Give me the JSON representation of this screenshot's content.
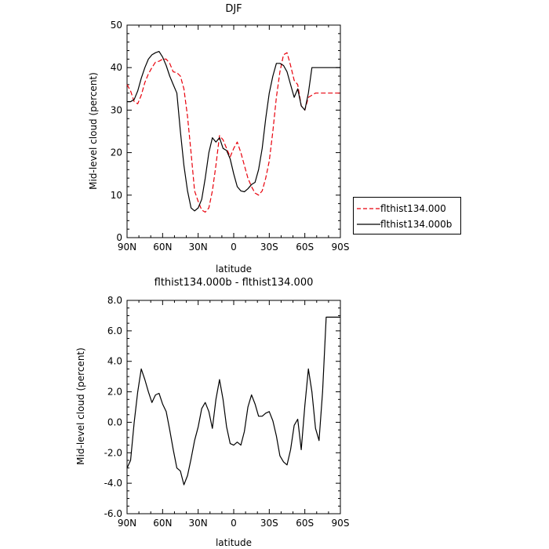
{
  "colors": {
    "series_a": "#e8000b",
    "series_b": "#000000",
    "axis": "#000000"
  },
  "chart_data": [
    {
      "type": "line",
      "title": "DJF",
      "xlabel": "latitude",
      "ylabel": "Mid-level cloud (percent)",
      "x_axis": "latitude, 90 (90N) to -90 (90S)",
      "xlim": [
        90,
        -90
      ],
      "ylim": [
        0,
        50
      ],
      "xtick_values": [
        90,
        60,
        30,
        0,
        -30,
        -60,
        -90
      ],
      "xtick_labels": [
        "90N",
        "60N",
        "30N",
        "0",
        "30S",
        "60S",
        "90S"
      ],
      "ytick_values": [
        0,
        10,
        20,
        30,
        40,
        50
      ],
      "ytick_labels": [
        "0",
        "10",
        "20",
        "30",
        "40",
        "50"
      ],
      "legend": "right, outside plot",
      "series": [
        {
          "name": "flthist134.000",
          "style": "dashed",
          "color": "#e8000b",
          "x": [
            90,
            87,
            84,
            81,
            78,
            75,
            72,
            69,
            66,
            63,
            60,
            57,
            54,
            51,
            48,
            45,
            42,
            39,
            36,
            33,
            30,
            27,
            24,
            21,
            18,
            15,
            12,
            9,
            6,
            3,
            0,
            -3,
            -6,
            -9,
            -12,
            -15,
            -18,
            -21,
            -24,
            -27,
            -30,
            -33,
            -36,
            -39,
            -42,
            -45,
            -48,
            -51,
            -54,
            -57,
            -60,
            -63,
            -66,
            -69,
            -72,
            -75,
            -78,
            -81,
            -84,
            -87,
            -90
          ],
          "y": [
            36,
            34.5,
            32,
            31.5,
            33.5,
            36.5,
            38.5,
            40,
            41.3,
            41.5,
            42,
            42,
            41,
            39,
            38.8,
            38,
            35,
            28.5,
            20,
            11,
            8.5,
            6.5,
            6,
            7,
            11,
            17,
            24,
            23,
            21,
            19,
            21,
            22.5,
            20,
            17,
            14,
            12,
            10.5,
            10,
            11,
            14,
            18,
            25,
            33,
            39,
            43,
            43.5,
            40.5,
            37,
            36,
            31,
            30,
            33,
            33.5,
            34,
            34,
            34,
            34,
            34,
            34,
            34,
            34
          ]
        },
        {
          "name": "flthist134.000b",
          "style": "solid",
          "color": "#000000",
          "x": [
            90,
            87,
            84,
            81,
            78,
            75,
            72,
            69,
            66,
            63,
            60,
            57,
            54,
            51,
            48,
            45,
            42,
            39,
            36,
            33,
            30,
            27,
            24,
            21,
            18,
            15,
            12,
            9,
            6,
            3,
            0,
            -3,
            -6,
            -9,
            -12,
            -15,
            -18,
            -21,
            -24,
            -27,
            -30,
            -33,
            -36,
            -39,
            -42,
            -45,
            -48,
            -51,
            -54,
            -57,
            -60,
            -63,
            -66,
            -69,
            -72,
            -75,
            -78,
            -81,
            -84,
            -87,
            -90
          ],
          "y": [
            32,
            32,
            32.5,
            34.5,
            37.5,
            40,
            42,
            43,
            43.5,
            43.8,
            42.5,
            40.5,
            38,
            36,
            34,
            25,
            17,
            11,
            7,
            6.3,
            7,
            9,
            14,
            20,
            23.5,
            22.5,
            23.5,
            21,
            20.5,
            18.5,
            15,
            12,
            11,
            10.8,
            11.5,
            12.5,
            13,
            16,
            21,
            28,
            34,
            38,
            41,
            41,
            40.5,
            39,
            36,
            33,
            35,
            31,
            30,
            34,
            40,
            40,
            40,
            40,
            40,
            40,
            40,
            40,
            40
          ]
        }
      ]
    },
    {
      "type": "line",
      "title": "flthist134.000b - flthist134.000",
      "xlabel": "latitude",
      "ylabel": "Mid-level cloud (percent)",
      "x_axis": "latitude, 90 (90N) to -90 (90S)",
      "xlim": [
        90,
        -90
      ],
      "ylim": [
        -6,
        8
      ],
      "xtick_values": [
        90,
        60,
        30,
        0,
        -30,
        -60,
        -90
      ],
      "xtick_labels": [
        "90N",
        "60N",
        "30N",
        "0",
        "30S",
        "60S",
        "90S"
      ],
      "ytick_values": [
        -6,
        -4,
        -2,
        0,
        2,
        4,
        6,
        8
      ],
      "ytick_labels": [
        "-6.0",
        "-4.0",
        "-2.0",
        "0.0",
        "2.0",
        "4.0",
        "6.0",
        "8.0"
      ],
      "series": [
        {
          "style": "solid",
          "color": "#000000",
          "x": [
            90,
            87,
            84,
            81,
            78,
            75,
            72,
            69,
            66,
            63,
            60,
            57,
            54,
            51,
            48,
            45,
            42,
            39,
            36,
            33,
            30,
            27,
            24,
            21,
            18,
            15,
            12,
            9,
            6,
            3,
            0,
            -3,
            -6,
            -9,
            -12,
            -15,
            -18,
            -21,
            -24,
            -27,
            -30,
            -33,
            -36,
            -39,
            -42,
            -45,
            -48,
            -51,
            -54,
            -57,
            -60,
            -63,
            -66,
            -69,
            -72,
            -75,
            -78,
            -81,
            -84,
            -87,
            -90
          ],
          "y": [
            -3,
            -2.5,
            0,
            2,
            3.5,
            2.8,
            2,
            1.3,
            1.8,
            1.9,
            1.2,
            0.7,
            -0.5,
            -1.8,
            -3.0,
            -3.2,
            -4.1,
            -3.5,
            -2.4,
            -1.2,
            -0.3,
            0.9,
            1.3,
            0.7,
            -0.4,
            1.5,
            2.8,
            1.5,
            -0.3,
            -1.4,
            -1.5,
            -1.3,
            -1.5,
            -0.6,
            1.0,
            1.8,
            1.2,
            0.4,
            0.4,
            0.6,
            0.7,
            0.1,
            -0.9,
            -2.2,
            -2.6,
            -2.8,
            -1.8,
            -0.2,
            0.2,
            -1.8,
            1.1,
            3.5,
            2.0,
            -0.4,
            -1.2,
            2.0,
            6.9,
            6.9,
            6.9,
            6.9,
            6.9
          ]
        }
      ]
    }
  ]
}
